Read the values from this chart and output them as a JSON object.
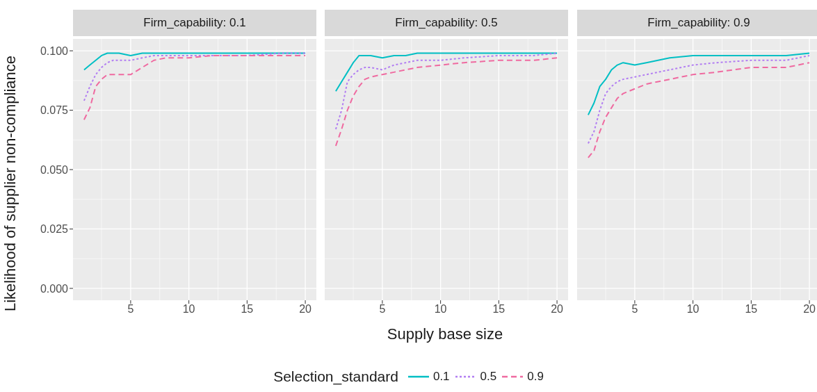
{
  "chart_data": [
    {
      "type": "line",
      "title": "Firm_capability: 0.1",
      "ylabel": "Likelihood of supplier non-compliance",
      "legend": "bottom",
      "legend_title": "Selection_standard",
      "x": [
        1,
        1.5,
        2,
        2.5,
        3,
        3.5,
        4,
        5,
        6,
        7,
        8,
        10,
        12,
        15,
        18,
        20
      ],
      "xlim": [
        0.05,
        20.95
      ],
      "xticks": [
        5,
        10,
        15,
        20
      ],
      "ylim": [
        -0.005,
        0.105
      ],
      "yticks": [
        {
          "value": 0,
          "label": "0.000"
        },
        {
          "value": 0.025,
          "label": "0.025"
        },
        {
          "value": 0.05,
          "label": "0.050"
        },
        {
          "value": 0.075,
          "label": "0.075"
        },
        {
          "value": 0.1,
          "label": "0.100"
        }
      ],
      "grid": true,
      "marker": "none",
      "series": [
        {
          "name": "0.1",
          "color": "#00bfc4",
          "line_style": "solid",
          "values": [
            0.092,
            0.094,
            0.096,
            0.098,
            0.099,
            0.099,
            0.099,
            0.098,
            0.099,
            0.099,
            0.099,
            0.099,
            0.099,
            0.099,
            0.099,
            0.099
          ]
        },
        {
          "name": "0.5",
          "color": "#b27ef2",
          "line_style": "dotted",
          "values": [
            0.079,
            0.085,
            0.09,
            0.093,
            0.095,
            0.096,
            0.096,
            0.096,
            0.097,
            0.098,
            0.098,
            0.098,
            0.098,
            0.098,
            0.099,
            0.099
          ]
        },
        {
          "name": "0.9",
          "color": "#ef6aa0",
          "line_style": "dashed",
          "values": [
            0.071,
            0.076,
            0.085,
            0.088,
            0.09,
            0.09,
            0.09,
            0.09,
            0.093,
            0.096,
            0.097,
            0.097,
            0.098,
            0.098,
            0.098,
            0.098
          ]
        }
      ]
    },
    {
      "type": "line",
      "title": "Firm_capability: 0.5",
      "xlabel": "Supply base size",
      "tick_labels": "x",
      "x": [
        1,
        1.5,
        2,
        2.5,
        3,
        3.5,
        4,
        5,
        6,
        7,
        8,
        10,
        12,
        15,
        18,
        20
      ],
      "xlim": [
        0.05,
        20.95
      ],
      "xticks": [
        5,
        10,
        15,
        20
      ],
      "ylim": [
        -0.005,
        0.105
      ],
      "yticks": [
        0,
        0.025,
        0.05,
        0.075,
        0.1
      ],
      "grid": true,
      "marker": "none",
      "series": [
        {
          "name": "0.1",
          "color": "#00bfc4",
          "line_style": "solid",
          "values": [
            0.083,
            0.087,
            0.091,
            0.095,
            0.098,
            0.098,
            0.098,
            0.097,
            0.098,
            0.098,
            0.099,
            0.099,
            0.099,
            0.099,
            0.099,
            0.099
          ]
        },
        {
          "name": "0.5",
          "color": "#b27ef2",
          "line_style": "dotted",
          "values": [
            0.067,
            0.075,
            0.087,
            0.09,
            0.092,
            0.093,
            0.093,
            0.092,
            0.094,
            0.095,
            0.096,
            0.096,
            0.097,
            0.098,
            0.098,
            0.099
          ]
        },
        {
          "name": "0.9",
          "color": "#ef6aa0",
          "line_style": "dashed",
          "values": [
            0.06,
            0.067,
            0.075,
            0.081,
            0.085,
            0.088,
            0.089,
            0.09,
            0.091,
            0.092,
            0.093,
            0.094,
            0.095,
            0.096,
            0.096,
            0.097
          ]
        }
      ]
    },
    {
      "type": "line",
      "title": "Firm_capability: 0.9",
      "tick_labels": "x",
      "x": [
        1,
        1.5,
        2,
        2.5,
        3,
        3.5,
        4,
        5,
        6,
        7,
        8,
        10,
        12,
        15,
        18,
        20
      ],
      "xlim": [
        0.05,
        20.95
      ],
      "xticks": [
        5,
        10,
        15,
        20
      ],
      "ylim": [
        -0.005,
        0.105
      ],
      "yticks": [
        0,
        0.025,
        0.05,
        0.075,
        0.1
      ],
      "grid": true,
      "marker": "none",
      "series": [
        {
          "name": "0.1",
          "color": "#00bfc4",
          "line_style": "solid",
          "values": [
            0.073,
            0.078,
            0.085,
            0.088,
            0.092,
            0.094,
            0.095,
            0.094,
            0.095,
            0.096,
            0.097,
            0.098,
            0.098,
            0.098,
            0.098,
            0.099
          ]
        },
        {
          "name": "0.5",
          "color": "#b27ef2",
          "line_style": "dotted",
          "values": [
            0.061,
            0.066,
            0.075,
            0.082,
            0.085,
            0.087,
            0.088,
            0.089,
            0.09,
            0.091,
            0.092,
            0.094,
            0.095,
            0.096,
            0.096,
            0.098
          ]
        },
        {
          "name": "0.9",
          "color": "#ef6aa0",
          "line_style": "dashed",
          "values": [
            0.055,
            0.058,
            0.066,
            0.072,
            0.076,
            0.08,
            0.082,
            0.084,
            0.086,
            0.087,
            0.088,
            0.09,
            0.091,
            0.093,
            0.093,
            0.095
          ]
        }
      ]
    }
  ]
}
